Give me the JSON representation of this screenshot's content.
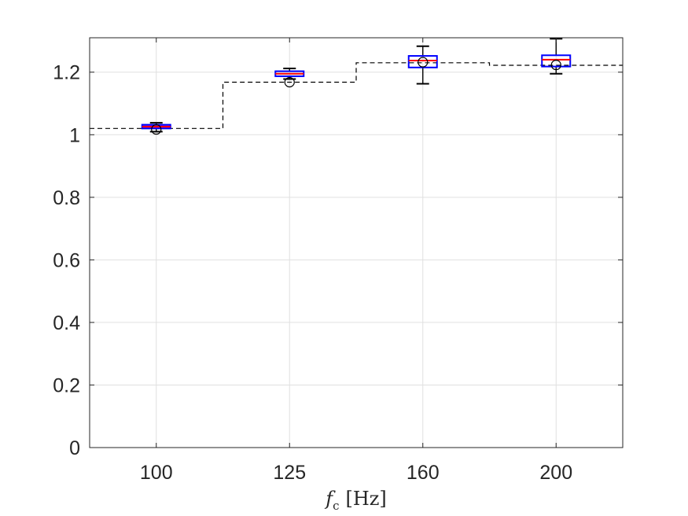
{
  "chart_data": {
    "type": "box",
    "categories": [
      "100",
      "125",
      "160",
      "200"
    ],
    "x_tick_labels": [
      "100",
      "125",
      "160",
      "200"
    ],
    "y_tick_labels": [
      "0",
      "0.2",
      "0.4",
      "0.6",
      "0.8",
      "1",
      "1.2"
    ],
    "y_ticks": [
      0,
      0.2,
      0.4,
      0.6,
      0.8,
      1.0,
      1.2
    ],
    "ylim": [
      0,
      1.31
    ],
    "xlabel": {
      "main": "f",
      "sub": "c",
      "unit": "[Hz]"
    },
    "grid": true,
    "boxes": [
      {
        "category": "100",
        "whisker_low": 1.01,
        "q1": 1.02,
        "median": 1.026,
        "q3": 1.032,
        "whisker_high": 1.038,
        "mean": 1.017
      },
      {
        "category": "125",
        "whisker_low": 1.178,
        "q1": 1.187,
        "median": 1.195,
        "q3": 1.203,
        "whisker_high": 1.212,
        "mean": 1.168
      },
      {
        "category": "160",
        "whisker_low": 1.163,
        "q1": 1.215,
        "median": 1.237,
        "q3": 1.252,
        "whisker_high": 1.283,
        "mean": 1.232
      },
      {
        "category": "200",
        "whisker_low": 1.195,
        "q1": 1.218,
        "median": 1.24,
        "q3": 1.254,
        "whisker_high": 1.307,
        "mean": 1.223
      }
    ],
    "reference_steps": [
      {
        "category": "100",
        "value": 1.02
      },
      {
        "category": "125",
        "value": 1.168
      },
      {
        "category": "160",
        "value": 1.23
      },
      {
        "category": "200",
        "value": 1.222
      }
    ],
    "colors": {
      "box": "#0000ff",
      "box_fill": "#7f00ff",
      "median": "#ff0000",
      "whisker": "#000000",
      "reference": "#000000",
      "grid": "#e0e0e0"
    }
  }
}
